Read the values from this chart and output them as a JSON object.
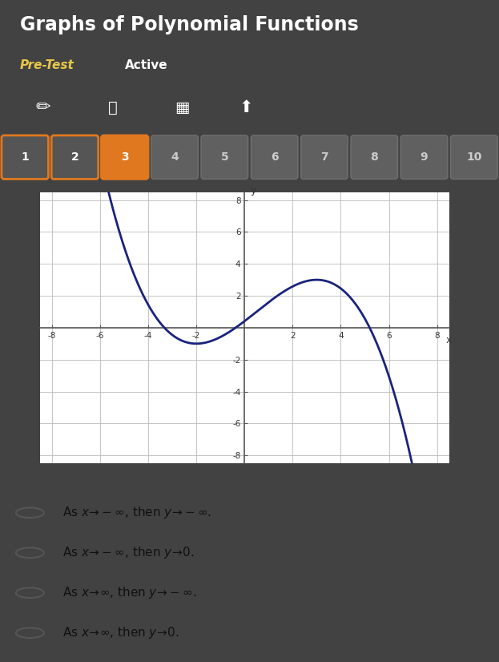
{
  "title": "Graphs of Polynomial Functions",
  "subtitle": "Pre-Test",
  "subtitle2": "Active",
  "bg_color": "#424242",
  "toolbar_bg": "#383838",
  "graph_bg": "#f0f0f0",
  "options_bg": "#f0f0f0",
  "title_color": "#ffffff",
  "pretest_color": "#e8c84a",
  "active_color": "#ffffff",
  "curve_color": "#1a237e",
  "axis_color": "#555555",
  "grid_color": "#bbbbbb",
  "btn_orange_fill": "#e07820",
  "btn_orange_border": "#e07820",
  "btn_1_border": "#e07820",
  "btn_2_border": "#e07820",
  "btn_grey_fill": "#606060",
  "btn_grey_border": "#707070",
  "button_labels": [
    "1",
    "2",
    "3",
    "4",
    "5",
    "6",
    "7",
    "8",
    "9",
    "10"
  ],
  "xlim": [
    -8.5,
    8.5
  ],
  "ylim": [
    -8.5,
    8.5
  ],
  "xticks": [
    -8,
    -6,
    -4,
    -2,
    2,
    4,
    6,
    8
  ],
  "yticks": [
    -8,
    -6,
    -4,
    -2,
    2,
    4,
    6,
    8
  ],
  "options": [
    "As $x\\!\\to\\!-\\infty$, then $y\\!\\to\\!-\\infty$.",
    "As $x\\!\\to\\!-\\infty$, then $y\\!\\to\\!0$.",
    "As $x\\!\\to\\!\\infty$, then $y\\!\\to\\!-\\infty$.",
    "As $x\\!\\to\\!\\infty$, then $y\\!\\to\\!0$."
  ],
  "poly_a": 0.064,
  "poly_b": 0.096,
  "poly_c": 1.152,
  "poly_d": 0.408
}
